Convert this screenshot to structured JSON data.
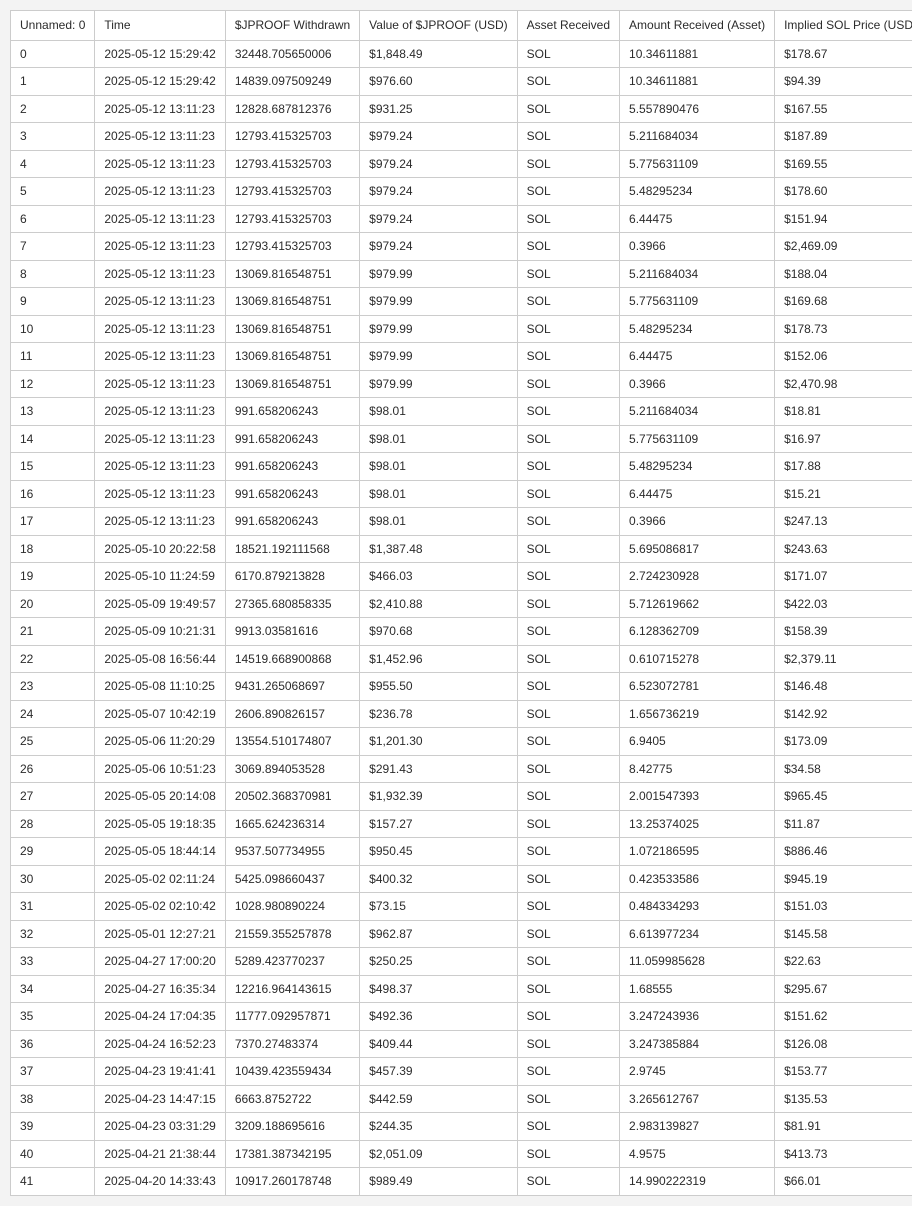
{
  "table": {
    "headers": [
      "Unnamed: 0",
      "Time",
      "$JPROOF Withdrawn",
      "Value of $JPROOF (USD)",
      "Asset Received",
      "Amount Received (Asset)",
      "Implied SOL Price (USD)"
    ],
    "rows": [
      [
        "0",
        "2025-05-12 15:29:42",
        "32448.705650006",
        "$1,848.49",
        "SOL",
        "10.34611881",
        "$178.67"
      ],
      [
        "1",
        "2025-05-12 15:29:42",
        "14839.097509249",
        "$976.60",
        "SOL",
        "10.34611881",
        "$94.39"
      ],
      [
        "2",
        "2025-05-12 13:11:23",
        "12828.687812376",
        "$931.25",
        "SOL",
        "5.557890476",
        "$167.55"
      ],
      [
        "3",
        "2025-05-12 13:11:23",
        "12793.415325703",
        "$979.24",
        "SOL",
        "5.211684034",
        "$187.89"
      ],
      [
        "4",
        "2025-05-12 13:11:23",
        "12793.415325703",
        "$979.24",
        "SOL",
        "5.775631109",
        "$169.55"
      ],
      [
        "5",
        "2025-05-12 13:11:23",
        "12793.415325703",
        "$979.24",
        "SOL",
        "5.48295234",
        "$178.60"
      ],
      [
        "6",
        "2025-05-12 13:11:23",
        "12793.415325703",
        "$979.24",
        "SOL",
        "6.44475",
        "$151.94"
      ],
      [
        "7",
        "2025-05-12 13:11:23",
        "12793.415325703",
        "$979.24",
        "SOL",
        "0.3966",
        "$2,469.09"
      ],
      [
        "8",
        "2025-05-12 13:11:23",
        "13069.816548751",
        "$979.99",
        "SOL",
        "5.211684034",
        "$188.04"
      ],
      [
        "9",
        "2025-05-12 13:11:23",
        "13069.816548751",
        "$979.99",
        "SOL",
        "5.775631109",
        "$169.68"
      ],
      [
        "10",
        "2025-05-12 13:11:23",
        "13069.816548751",
        "$979.99",
        "SOL",
        "5.48295234",
        "$178.73"
      ],
      [
        "11",
        "2025-05-12 13:11:23",
        "13069.816548751",
        "$979.99",
        "SOL",
        "6.44475",
        "$152.06"
      ],
      [
        "12",
        "2025-05-12 13:11:23",
        "13069.816548751",
        "$979.99",
        "SOL",
        "0.3966",
        "$2,470.98"
      ],
      [
        "13",
        "2025-05-12 13:11:23",
        "991.658206243",
        "$98.01",
        "SOL",
        "5.211684034",
        "$18.81"
      ],
      [
        "14",
        "2025-05-12 13:11:23",
        "991.658206243",
        "$98.01",
        "SOL",
        "5.775631109",
        "$16.97"
      ],
      [
        "15",
        "2025-05-12 13:11:23",
        "991.658206243",
        "$98.01",
        "SOL",
        "5.48295234",
        "$17.88"
      ],
      [
        "16",
        "2025-05-12 13:11:23",
        "991.658206243",
        "$98.01",
        "SOL",
        "6.44475",
        "$15.21"
      ],
      [
        "17",
        "2025-05-12 13:11:23",
        "991.658206243",
        "$98.01",
        "SOL",
        "0.3966",
        "$247.13"
      ],
      [
        "18",
        "2025-05-10 20:22:58",
        "18521.192111568",
        "$1,387.48",
        "SOL",
        "5.695086817",
        "$243.63"
      ],
      [
        "19",
        "2025-05-10 11:24:59",
        "6170.879213828",
        "$466.03",
        "SOL",
        "2.724230928",
        "$171.07"
      ],
      [
        "20",
        "2025-05-09 19:49:57",
        "27365.680858335",
        "$2,410.88",
        "SOL",
        "5.712619662",
        "$422.03"
      ],
      [
        "21",
        "2025-05-09 10:21:31",
        "9913.03581616",
        "$970.68",
        "SOL",
        "6.128362709",
        "$158.39"
      ],
      [
        "22",
        "2025-05-08 16:56:44",
        "14519.668900868",
        "$1,452.96",
        "SOL",
        "0.610715278",
        "$2,379.11"
      ],
      [
        "23",
        "2025-05-08 11:10:25",
        "9431.265068697",
        "$955.50",
        "SOL",
        "6.523072781",
        "$146.48"
      ],
      [
        "24",
        "2025-05-07 10:42:19",
        "2606.890826157",
        "$236.78",
        "SOL",
        "1.656736219",
        "$142.92"
      ],
      [
        "25",
        "2025-05-06 11:20:29",
        "13554.510174807",
        "$1,201.30",
        "SOL",
        "6.9405",
        "$173.09"
      ],
      [
        "26",
        "2025-05-06 10:51:23",
        "3069.894053528",
        "$291.43",
        "SOL",
        "8.42775",
        "$34.58"
      ],
      [
        "27",
        "2025-05-05 20:14:08",
        "20502.368370981",
        "$1,932.39",
        "SOL",
        "2.001547393",
        "$965.45"
      ],
      [
        "28",
        "2025-05-05 19:18:35",
        "1665.624236314",
        "$157.27",
        "SOL",
        "13.25374025",
        "$11.87"
      ],
      [
        "29",
        "2025-05-05 18:44:14",
        "9537.507734955",
        "$950.45",
        "SOL",
        "1.072186595",
        "$886.46"
      ],
      [
        "30",
        "2025-05-02 02:11:24",
        "5425.098660437",
        "$400.32",
        "SOL",
        "0.423533586",
        "$945.19"
      ],
      [
        "31",
        "2025-05-02 02:10:42",
        "1028.980890224",
        "$73.15",
        "SOL",
        "0.484334293",
        "$151.03"
      ],
      [
        "32",
        "2025-05-01 12:27:21",
        "21559.355257878",
        "$962.87",
        "SOL",
        "6.613977234",
        "$145.58"
      ],
      [
        "33",
        "2025-04-27 17:00:20",
        "5289.423770237",
        "$250.25",
        "SOL",
        "11.059985628",
        "$22.63"
      ],
      [
        "34",
        "2025-04-27 16:35:34",
        "12216.964143615",
        "$498.37",
        "SOL",
        "1.68555",
        "$295.67"
      ],
      [
        "35",
        "2025-04-24 17:04:35",
        "11777.092957871",
        "$492.36",
        "SOL",
        "3.247243936",
        "$151.62"
      ],
      [
        "36",
        "2025-04-24 16:52:23",
        "7370.27483374",
        "$409.44",
        "SOL",
        "3.247385884",
        "$126.08"
      ],
      [
        "37",
        "2025-04-23 19:41:41",
        "10439.423559434",
        "$457.39",
        "SOL",
        "2.9745",
        "$153.77"
      ],
      [
        "38",
        "2025-04-23 14:47:15",
        "6663.8752722",
        "$442.59",
        "SOL",
        "3.265612767",
        "$135.53"
      ],
      [
        "39",
        "2025-04-23 03:31:29",
        "3209.188695616",
        "$244.35",
        "SOL",
        "2.983139827",
        "$81.91"
      ],
      [
        "40",
        "2025-04-21 21:38:44",
        "17381.387342195",
        "$2,051.09",
        "SOL",
        "4.9575",
        "$413.73"
      ],
      [
        "41",
        "2025-04-20 14:33:43",
        "10917.260178748",
        "$989.49",
        "SOL",
        "14.990222319",
        "$66.01"
      ]
    ]
  },
  "colors": {
    "page_background": "#f3f3f3",
    "cell_background": "#ffffff",
    "border": "#cccccc",
    "text": "#2b2b2b"
  }
}
